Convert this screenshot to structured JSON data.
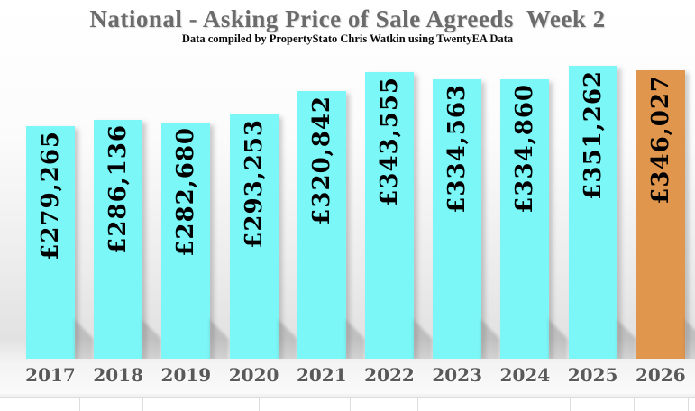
{
  "chart_data": {
    "type": "bar",
    "title": "National - Asking Price of Sale Agreeds  Week 2",
    "subtitle": "Data compiled by PropertyStato Chris Watkin using TwentyEA Data",
    "categories": [
      "2017",
      "2018",
      "2019",
      "2020",
      "2021",
      "2022",
      "2023",
      "2024",
      "2025",
      "2026"
    ],
    "values": [
      279265,
      286136,
      282680,
      293253,
      320842,
      343555,
      334563,
      334860,
      351262,
      346027
    ],
    "data_labels": [
      "£279,265",
      "£286,136",
      "£282,680",
      "£293,253",
      "£320,842",
      "£343,555",
      "£334,563",
      "£334,860",
      "£351,262",
      "£346,027"
    ],
    "currency": "GBP",
    "bar_color": "#7CF7F7",
    "highlight_color": "#E0964D",
    "highlight_index": 9,
    "label_color": "#000000",
    "axis_label_color": "#595959",
    "ylim": [
      0,
      430000
    ],
    "grid": false,
    "legend": false,
    "data_label_orientation": "vertical-bottom-to-top"
  }
}
